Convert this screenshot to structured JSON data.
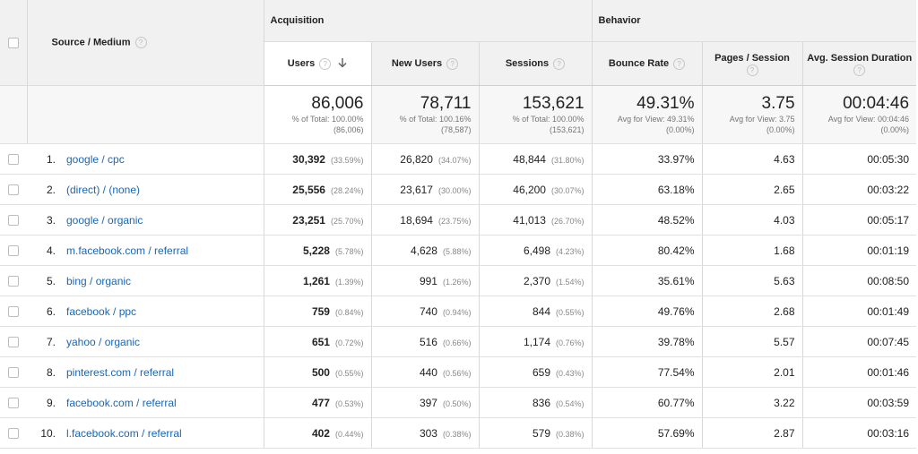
{
  "header": {
    "source_medium_label": "Source / Medium",
    "acquisition_label": "Acquisition",
    "behavior_label": "Behavior",
    "help_glyph": "?",
    "sort_glyph": "↓",
    "columns": {
      "users": "Users",
      "new_users": "New Users",
      "sessions": "Sessions",
      "bounce_rate": "Bounce Rate",
      "pages_session": "Pages / Session",
      "avg_session_duration": "Avg. Session Duration"
    }
  },
  "totals": {
    "users": {
      "value": "86,006",
      "line1": "% of Total: 100.00%",
      "line2": "(86,006)"
    },
    "new_users": {
      "value": "78,711",
      "line1": "% of Total: 100.16%",
      "line2": "(78,587)"
    },
    "sessions": {
      "value": "153,621",
      "line1": "% of Total: 100.00%",
      "line2": "(153,621)"
    },
    "bounce_rate": {
      "value": "49.31%",
      "line1": "Avg for View: 49.31%",
      "line2": "(0.00%)"
    },
    "pages_session": {
      "value": "3.75",
      "line1": "Avg for View: 3.75",
      "line2": "(0.00%)"
    },
    "avg_session_duration": {
      "value": "00:04:46",
      "line1": "Avg for View: 00:04:46",
      "line2": "(0.00%)"
    }
  },
  "rows": [
    {
      "index": "1.",
      "source": "google / cpc",
      "users": "30,392",
      "users_pct": "(33.59%)",
      "new_users": "26,820",
      "new_users_pct": "(34.07%)",
      "sessions": "48,844",
      "sessions_pct": "(31.80%)",
      "bounce_rate": "33.97%",
      "pages_session": "4.63",
      "duration": "00:05:30"
    },
    {
      "index": "2.",
      "source": "(direct) / (none)",
      "users": "25,556",
      "users_pct": "(28.24%)",
      "new_users": "23,617",
      "new_users_pct": "(30.00%)",
      "sessions": "46,200",
      "sessions_pct": "(30.07%)",
      "bounce_rate": "63.18%",
      "pages_session": "2.65",
      "duration": "00:03:22"
    },
    {
      "index": "3.",
      "source": "google / organic",
      "users": "23,251",
      "users_pct": "(25.70%)",
      "new_users": "18,694",
      "new_users_pct": "(23.75%)",
      "sessions": "41,013",
      "sessions_pct": "(26.70%)",
      "bounce_rate": "48.52%",
      "pages_session": "4.03",
      "duration": "00:05:17"
    },
    {
      "index": "4.",
      "source": "m.facebook.com / referral",
      "users": "5,228",
      "users_pct": "(5.78%)",
      "new_users": "4,628",
      "new_users_pct": "(5.88%)",
      "sessions": "6,498",
      "sessions_pct": "(4.23%)",
      "bounce_rate": "80.42%",
      "pages_session": "1.68",
      "duration": "00:01:19"
    },
    {
      "index": "5.",
      "source": "bing / organic",
      "users": "1,261",
      "users_pct": "(1.39%)",
      "new_users": "991",
      "new_users_pct": "(1.26%)",
      "sessions": "2,370",
      "sessions_pct": "(1.54%)",
      "bounce_rate": "35.61%",
      "pages_session": "5.63",
      "duration": "00:08:50"
    },
    {
      "index": "6.",
      "source": "facebook / ppc",
      "users": "759",
      "users_pct": "(0.84%)",
      "new_users": "740",
      "new_users_pct": "(0.94%)",
      "sessions": "844",
      "sessions_pct": "(0.55%)",
      "bounce_rate": "49.76%",
      "pages_session": "2.68",
      "duration": "00:01:49"
    },
    {
      "index": "7.",
      "source": "yahoo / organic",
      "users": "651",
      "users_pct": "(0.72%)",
      "new_users": "516",
      "new_users_pct": "(0.66%)",
      "sessions": "1,174",
      "sessions_pct": "(0.76%)",
      "bounce_rate": "39.78%",
      "pages_session": "5.57",
      "duration": "00:07:45"
    },
    {
      "index": "8.",
      "source": "pinterest.com / referral",
      "users": "500",
      "users_pct": "(0.55%)",
      "new_users": "440",
      "new_users_pct": "(0.56%)",
      "sessions": "659",
      "sessions_pct": "(0.43%)",
      "bounce_rate": "77.54%",
      "pages_session": "2.01",
      "duration": "00:01:46"
    },
    {
      "index": "9.",
      "source": "facebook.com / referral",
      "users": "477",
      "users_pct": "(0.53%)",
      "new_users": "397",
      "new_users_pct": "(0.50%)",
      "sessions": "836",
      "sessions_pct": "(0.54%)",
      "bounce_rate": "60.77%",
      "pages_session": "3.22",
      "duration": "00:03:59"
    },
    {
      "index": "10.",
      "source": "l.facebook.com / referral",
      "users": "402",
      "users_pct": "(0.44%)",
      "new_users": "303",
      "new_users_pct": "(0.38%)",
      "sessions": "579",
      "sessions_pct": "(0.38%)",
      "bounce_rate": "57.69%",
      "pages_session": "2.87",
      "duration": "00:03:16"
    }
  ]
}
